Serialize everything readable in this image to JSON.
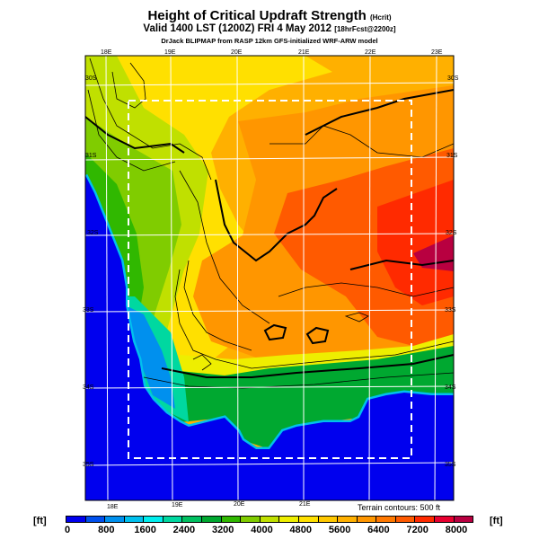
{
  "header": {
    "title": "Height of Critical Updraft Strength",
    "title_units": "(Hcrit)",
    "valid": "Valid 1400 LST (1200Z) FRI 4 May 2012",
    "forecast": "[18hrFcst@2200z]",
    "model": "DrJack BLIPMAP from RASP 12km GFS-initialized WRF-ARW model"
  },
  "map": {
    "lon_labels": [
      "18E",
      "19E",
      "20E",
      "21E",
      "22E",
      "23E"
    ],
    "lat_labels": [
      "30S",
      "31S",
      "32S",
      "33S",
      "34S",
      "35S"
    ],
    "terrain_note": "Terrain contours: 500 ft"
  },
  "colorbar": {
    "unit_left": "[ft]",
    "unit_right": "[ft]",
    "tick_labels": [
      "0",
      "800",
      "1600",
      "2400",
      "3200",
      "4000",
      "4800",
      "5600",
      "6400",
      "7200",
      "8000"
    ],
    "colors": [
      "#0000ee",
      "#0050ee",
      "#0090ee",
      "#00c0ee",
      "#00eeee",
      "#00d8a0",
      "#00c060",
      "#00a830",
      "#30b800",
      "#80cc00",
      "#c0e000",
      "#eeee00",
      "#ffe000",
      "#ffc800",
      "#ffb000",
      "#ff9600",
      "#ff7800",
      "#ff5a00",
      "#ff2a00",
      "#e80030",
      "#b80040"
    ]
  }
}
